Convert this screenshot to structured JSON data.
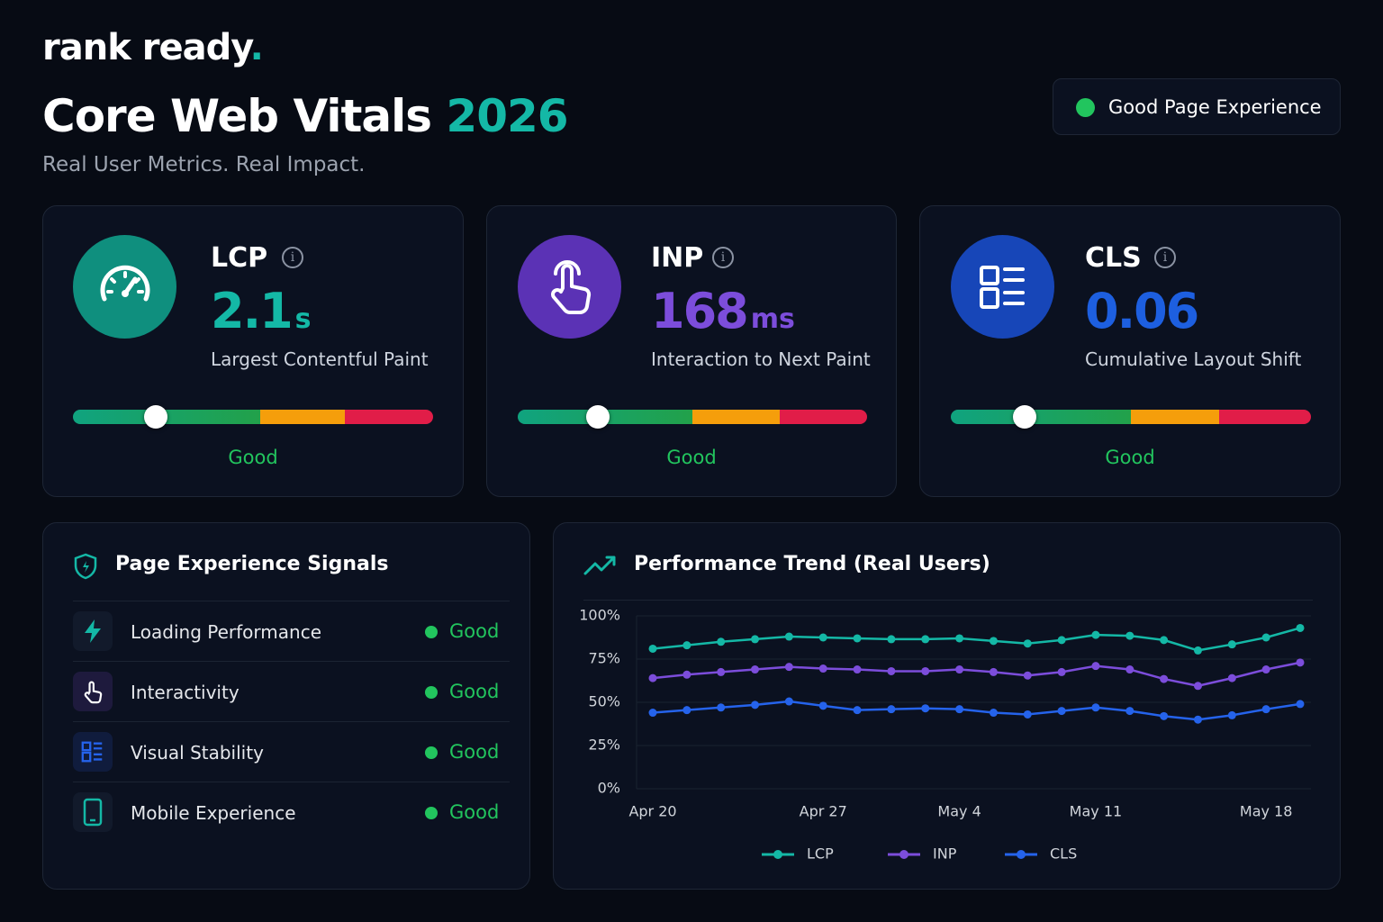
{
  "brand": {
    "name": "rank ready",
    "dot": "."
  },
  "header": {
    "title": "Core Web Vitals",
    "year": "2026",
    "subtitle": "Real User Metrics. Real Impact.",
    "badge": "Good Page Experience"
  },
  "metrics": [
    {
      "name": "LCP",
      "value": 2.1,
      "unit": "s",
      "description": "Largest Contentful Paint",
      "status": "Good"
    },
    {
      "name": "INP",
      "value": 168,
      "unit": "ms",
      "description": "Interaction to Next Paint",
      "status": "Good"
    },
    {
      "name": "CLS",
      "value": 0.06,
      "description": "Cumulative Layout Shift",
      "status": "Good"
    }
  ],
  "signals": {
    "title": "Page Experience Signals",
    "items": [
      {
        "label": "Loading Performance",
        "status": "Good"
      },
      {
        "label": "Interactivity",
        "status": "Good"
      },
      {
        "label": "Visual Stability",
        "status": "Good"
      },
      {
        "label": "Mobile Experience",
        "status": "Good"
      }
    ]
  },
  "chart_data": {
    "type": "line",
    "title": "Performance Trend (Real Users)",
    "categories": [
      "Apr 20",
      null,
      null,
      null,
      null,
      "Apr 27",
      null,
      null,
      null,
      "May 4",
      null,
      null,
      null,
      "May 11",
      null,
      null,
      null,
      null,
      "May 18",
      null
    ],
    "series": [
      {
        "name": "LCP",
        "color": "#14b8a6",
        "values": [
          81,
          83,
          85,
          86.5,
          88,
          87.5,
          87,
          86.5,
          86.5,
          87,
          85.5,
          84,
          86,
          89,
          88.5,
          86,
          80,
          83.5,
          87.5,
          93
        ]
      },
      {
        "name": "INP",
        "color": "#7c4ddb",
        "values": [
          64,
          66,
          67.5,
          69,
          70.5,
          69.5,
          69,
          68,
          68,
          69,
          67.5,
          65.5,
          67.5,
          71,
          69,
          63.5,
          59.5,
          64,
          69,
          73
        ]
      },
      {
        "name": "CLS",
        "color": "#2563eb",
        "values": [
          44,
          45.5,
          47,
          48.5,
          50.5,
          48,
          45.5,
          46,
          46.5,
          46,
          44,
          43,
          45,
          47,
          45,
          42,
          40,
          42.5,
          46,
          49
        ]
      }
    ],
    "ylim": [
      0,
      100
    ],
    "yticks": [
      {
        "value": 0,
        "label": "0%"
      },
      {
        "value": 25,
        "label": "25%"
      },
      {
        "value": 50,
        "label": "50%"
      },
      {
        "value": 75,
        "label": "75%"
      },
      {
        "value": 100,
        "label": "100%"
      }
    ],
    "grid": true
  }
}
